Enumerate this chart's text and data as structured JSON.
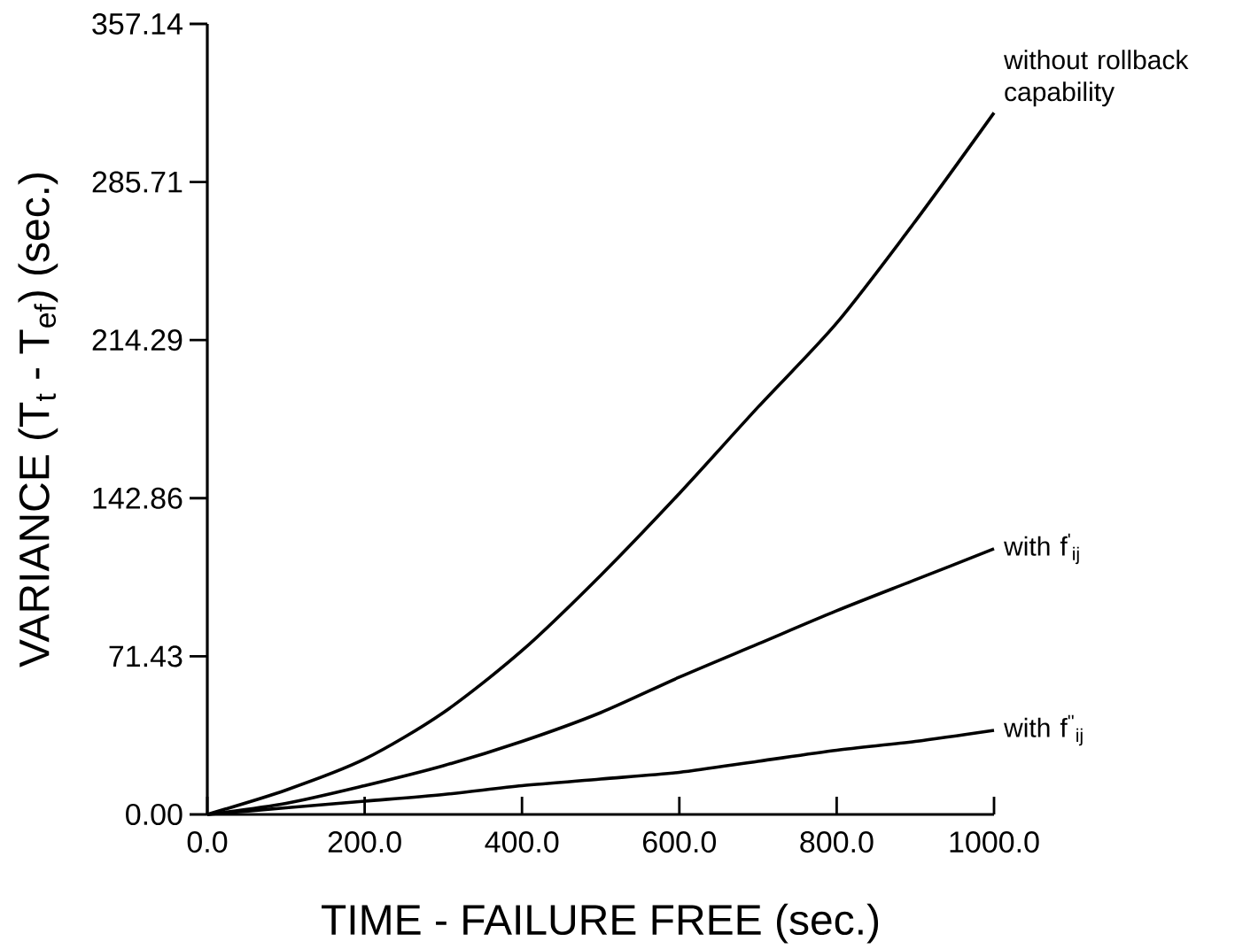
{
  "chart_data": {
    "type": "line",
    "xlabel": "TIME - FAILURE FREE (sec.)",
    "ylabel": "VARIANCE (T$_{t}$ - T$_{ef}$) (sec.)",
    "x": [
      0,
      100,
      200,
      300,
      400,
      500,
      600,
      700,
      800,
      900,
      1000
    ],
    "series": [
      {
        "name": "without rollback capability",
        "color": "#000000",
        "values": [
          0,
          11,
          25,
          46,
          74,
          108,
          145,
          184,
          222,
          268,
          317
        ]
      },
      {
        "name": "with f$^{'}$$_{ij}$",
        "color": "#000000",
        "values": [
          0,
          5,
          13,
          22,
          33,
          46,
          62,
          77,
          92,
          106,
          120
        ]
      },
      {
        "name": "with f$^{''}$$_{ij}$",
        "color": "#000000",
        "values": [
          0,
          3,
          6,
          9,
          13,
          16,
          19,
          24,
          29,
          33,
          38
        ]
      }
    ],
    "xlim": [
      0,
      1000
    ],
    "ylim": [
      0,
      357.14
    ],
    "xticks": [
      {
        "value": 0,
        "label": "0.0"
      },
      {
        "value": 200,
        "label": "200.0"
      },
      {
        "value": 400,
        "label": "400.0"
      },
      {
        "value": 600,
        "label": "600.0"
      },
      {
        "value": 800,
        "label": "800.0"
      },
      {
        "value": 1000,
        "label": "1000.0"
      }
    ],
    "yticks": [
      {
        "value": 0,
        "label": "0.00"
      },
      {
        "value": 71.43,
        "label": "71.43"
      },
      {
        "value": 142.86,
        "label": "142.86"
      },
      {
        "value": 214.29,
        "label": "214.29"
      },
      {
        "value": 285.71,
        "label": "285.71"
      },
      {
        "value": 357.14,
        "label": "357.14"
      }
    ],
    "grid": false,
    "legend": false,
    "marker": "none",
    "line_style": "solid"
  }
}
